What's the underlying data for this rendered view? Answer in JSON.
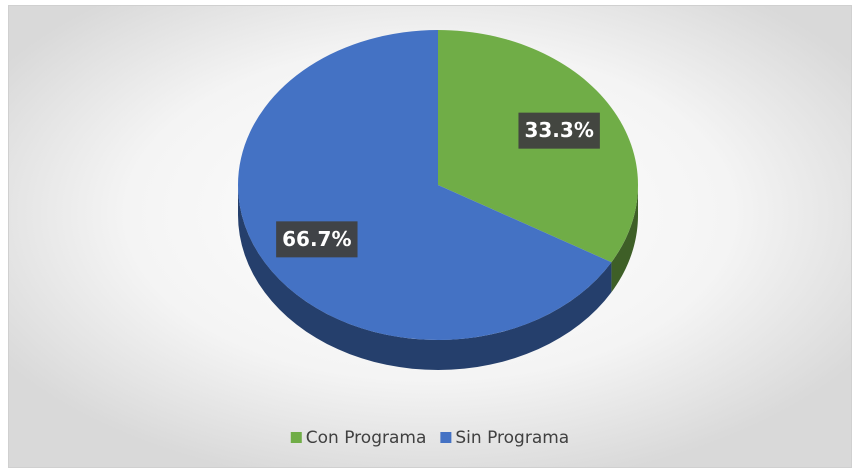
{
  "chart_data": {
    "type": "pie",
    "categories": [
      "Con Programa",
      "Sin Programa"
    ],
    "values": [
      33.3,
      66.7
    ],
    "value_labels": [
      "33.3%",
      "66.7%"
    ],
    "colors": [
      "#70ad47",
      "#4472c4"
    ],
    "legend": "bottom"
  }
}
